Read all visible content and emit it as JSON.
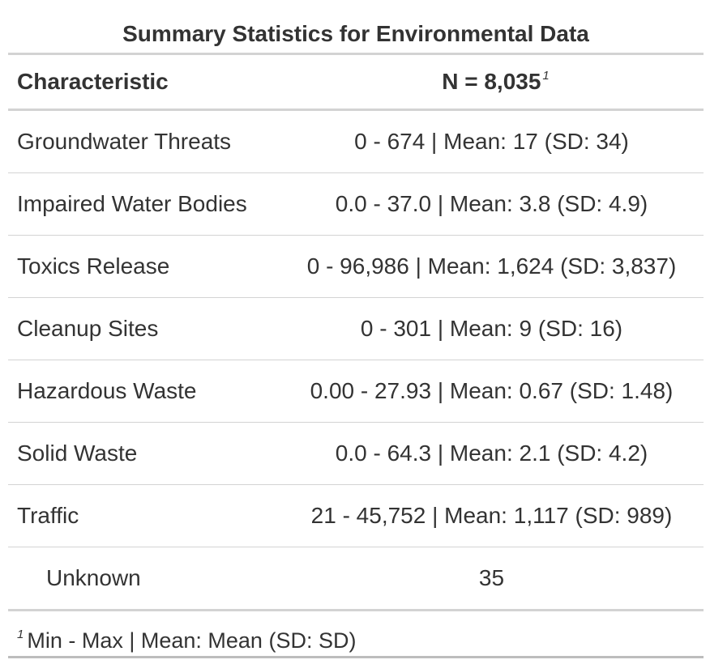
{
  "title": "Summary Statistics for Environmental Data",
  "header": {
    "characteristic": "Characteristic",
    "n_label": "N = 8,035",
    "n_footnote_marker": "1"
  },
  "rows": [
    {
      "label": "Groundwater Threats",
      "value": "0 - 674 | Mean: 17 (SD: 34)"
    },
    {
      "label": "Impaired Water Bodies",
      "value": "0.0 - 37.0 | Mean: 3.8 (SD: 4.9)"
    },
    {
      "label": "Toxics Release",
      "value": "0 - 96,986 | Mean: 1,624 (SD: 3,837)"
    },
    {
      "label": "Cleanup Sites",
      "value": "0 - 301 | Mean: 9 (SD: 16)"
    },
    {
      "label": "Hazardous Waste",
      "value": "0.00 - 27.93 | Mean: 0.67 (SD: 1.48)"
    },
    {
      "label": "Solid Waste",
      "value": "0.0 - 64.3 | Mean: 2.1 (SD: 4.2)"
    },
    {
      "label": "Traffic",
      "value": "21 - 45,752 | Mean: 1,117 (SD: 989)"
    },
    {
      "label": "Unknown",
      "value": "35"
    }
  ],
  "footnote": {
    "marker": "1",
    "text": "Min - Max | Mean: Mean (SD: SD)"
  }
}
